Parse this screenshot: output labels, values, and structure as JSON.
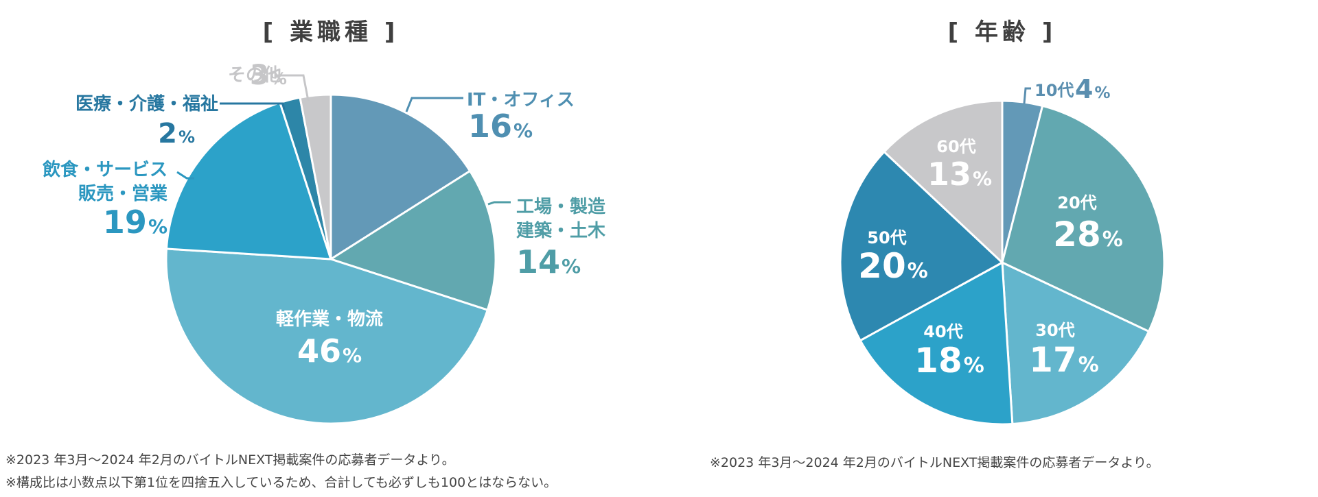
{
  "chart_data": [
    {
      "type": "pie",
      "title": "[ 業職種 ]",
      "slices": [
        {
          "label": "IT・オフィス",
          "value": 16,
          "text": "16",
          "color": "#6399b7"
        },
        {
          "label": "工場・製造 建築・土木",
          "value": 14,
          "text": "14",
          "color": "#62a8b0"
        },
        {
          "label": "軽作業・物流",
          "value": 46,
          "text": "46",
          "color": "#63b6cd"
        },
        {
          "label": "飲食・サービス 販売・営業",
          "value": 19,
          "text": "19",
          "color": "#2ca2c9"
        },
        {
          "label": "医療・介護・福祉",
          "value": 2,
          "text": "2",
          "color": "#2d86a8"
        },
        {
          "label": "その他",
          "value": 3,
          "text": "3",
          "color": "#c8c8ca"
        }
      ]
    },
    {
      "type": "pie",
      "title": "[ 年齢 ]",
      "slices": [
        {
          "label": "10代",
          "value": 4,
          "text": "4",
          "color": "#6399b7"
        },
        {
          "label": "20代",
          "value": 28,
          "text": "28",
          "color": "#62a8b0"
        },
        {
          "label": "30代",
          "value": 17,
          "text": "17",
          "color": "#63b6cd"
        },
        {
          "label": "40代",
          "value": 18,
          "text": "18",
          "color": "#2ca2c9"
        },
        {
          "label": "50代",
          "value": 20,
          "text": "20",
          "color": "#2d88b0"
        },
        {
          "label": "60代",
          "value": 13,
          "text": "13",
          "color": "#c8c8ca"
        }
      ]
    }
  ],
  "percent_sign": "%",
  "notes": {
    "left_line1": "※2023 年3月〜2024 年2月のバイトルNEXT掲載案件の応募者データより。",
    "left_line2": "※構成比は小数点以下第1位を四捨五入しているため、合計しても必ずしも100とはならない。",
    "right_line1": "※2023 年3月〜2024 年2月のバイトルNEXT掲載案件の応募者データより。"
  }
}
